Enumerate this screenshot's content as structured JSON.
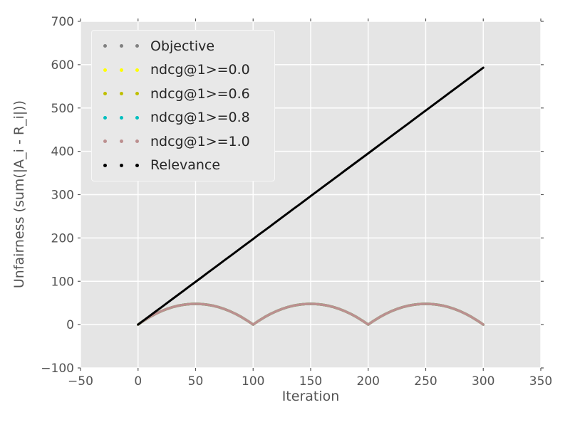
{
  "chart_data": {
    "type": "line",
    "title": "",
    "xlabel": "Iteration",
    "ylabel": "Unfairness (sum(|A_i - R_i|))",
    "xlim": [
      -50,
      350
    ],
    "ylim": [
      -100,
      700
    ],
    "grid": true,
    "legend_position": "upper left",
    "legend_marker_style": "three-dots",
    "x_ticks": [
      -50,
      0,
      50,
      100,
      150,
      200,
      250,
      300,
      350
    ],
    "x_tick_labels": [
      "−50",
      "0",
      "50",
      "100",
      "150",
      "200",
      "250",
      "300",
      "350"
    ],
    "y_ticks": [
      -100,
      0,
      100,
      200,
      300,
      400,
      500,
      600,
      700
    ],
    "y_tick_labels": [
      "−100",
      "0",
      "100",
      "200",
      "300",
      "400",
      "500",
      "600",
      "700"
    ],
    "x": [
      0,
      5,
      10,
      15,
      20,
      25,
      30,
      35,
      40,
      45,
      50,
      55,
      60,
      65,
      70,
      75,
      80,
      85,
      90,
      95,
      100,
      105,
      110,
      115,
      120,
      125,
      130,
      135,
      140,
      145,
      150,
      155,
      160,
      165,
      170,
      175,
      180,
      185,
      190,
      195,
      200,
      205,
      210,
      215,
      220,
      225,
      230,
      235,
      240,
      245,
      250,
      255,
      260,
      265,
      270,
      275,
      280,
      285,
      290,
      295,
      300
    ],
    "arc_y": [
      0,
      9.1,
      17.3,
      24.5,
      30.7,
      36,
      40.3,
      43.7,
      46.1,
      47.5,
      48,
      47.5,
      46.1,
      43.7,
      40.3,
      36,
      30.7,
      24.5,
      17.3,
      9.1,
      0,
      9.1,
      17.3,
      24.5,
      30.7,
      36,
      40.3,
      43.7,
      46.1,
      47.5,
      48,
      47.5,
      46.1,
      43.7,
      40.3,
      36,
      30.7,
      24.5,
      17.3,
      9.1,
      0,
      9.1,
      17.3,
      24.5,
      30.7,
      36,
      40.3,
      43.7,
      46.1,
      47.5,
      48,
      47.5,
      46.1,
      43.7,
      40.3,
      36,
      30.7,
      24.5,
      17.3,
      9.1,
      0
    ],
    "series": [
      {
        "name": "Objective",
        "color": "#808080",
        "y_ref": "arc_y",
        "linewidth": 3.5
      },
      {
        "name": "ndcg@1>=0.0",
        "color": "#ffff00",
        "y_ref": "arc_y",
        "linewidth": 3.5
      },
      {
        "name": "ndcg@1>=0.6",
        "color": "#bfbf00",
        "y_ref": "arc_y",
        "linewidth": 3.5
      },
      {
        "name": "ndcg@1>=0.8",
        "color": "#00bfbf",
        "y_ref": "arc_y",
        "linewidth": 3.5
      },
      {
        "name": "ndcg@1>=1.0",
        "color": "#bc8f8f",
        "y_ref": "arc_y",
        "linewidth": 3.5
      },
      {
        "name": "Relevance",
        "color": "#000000",
        "linewidth": 3,
        "y": [
          0,
          9.9,
          19.8,
          29.7,
          39.5,
          49.4,
          59.3,
          69.2,
          79.1,
          89.0,
          98.8,
          108.7,
          118.6,
          128.5,
          138.4,
          148.3,
          158.1,
          168.0,
          177.9,
          187.8,
          197.7,
          207.6,
          217.4,
          227.3,
          237.2,
          247.1,
          257.0,
          266.9,
          276.7,
          286.6,
          296.5,
          306.4,
          316.3,
          326.2,
          336.0,
          345.9,
          355.8,
          365.7,
          375.6,
          385.5,
          395.3,
          405.2,
          415.1,
          425.0,
          434.9,
          444.8,
          454.6,
          464.5,
          474.4,
          484.3,
          494.2,
          504.1,
          513.9,
          523.8,
          533.7,
          543.6,
          553.5,
          563.4,
          573.2,
          583.1,
          593
        ]
      }
    ],
    "note": "All five arc series coincide exactly; the visible arc curve is the last-drawn ndcg@1>=1.0 (rosy brown). Arches are zero at x=0,100,200,300 with peaks ~48 at x=50,150,250."
  },
  "style": {
    "figure_bg": "#ffffff",
    "axes_bg": "#e5e5e5",
    "grid_color": "#ffffff",
    "tick_color": "#555555",
    "tick_label_color": "#555555",
    "axis_label_color": "#555555",
    "legend_text_color": "#262626"
  }
}
